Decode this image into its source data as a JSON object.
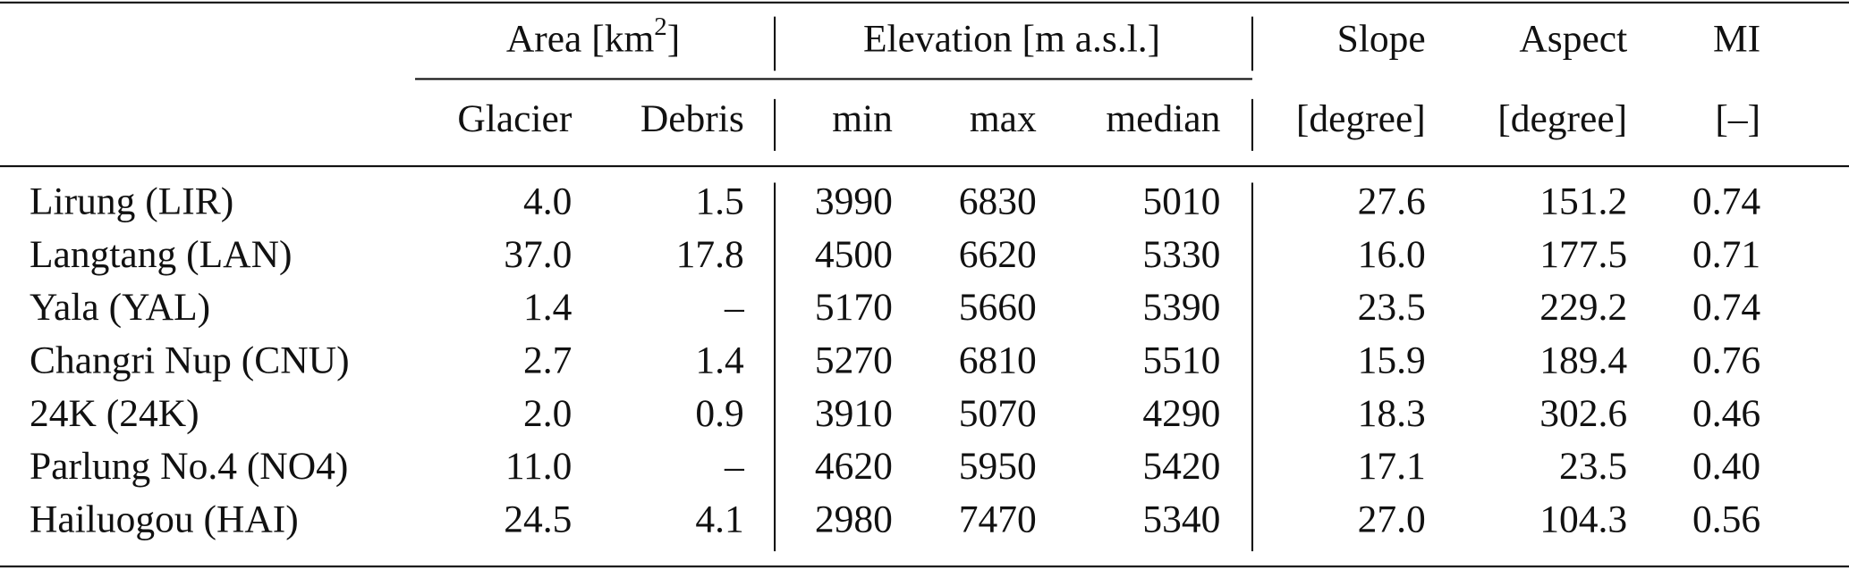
{
  "table": {
    "group_headers": [
      {
        "text": "Area [km",
        "sup": "2",
        "tail": "]"
      },
      {
        "text": "Elevation [m a.s.l.]"
      }
    ],
    "top_headers": [
      "Slope",
      "Aspect",
      "MI"
    ],
    "column_headers": [
      "Glacier",
      "Debris",
      "min",
      "max",
      "median",
      "[degree]",
      "[degree]",
      "[–]"
    ],
    "rows": [
      [
        "Lirung (LIR)",
        "4.0",
        "1.5",
        "3990",
        "6830",
        "5010",
        "27.6",
        "151.2",
        "0.74"
      ],
      [
        "Langtang (LAN)",
        "37.0",
        "17.8",
        "4500",
        "6620",
        "5330",
        "16.0",
        "177.5",
        "0.71"
      ],
      [
        "Yala (YAL)",
        "1.4",
        "–",
        "5170",
        "5660",
        "5390",
        "23.5",
        "229.2",
        "0.74"
      ],
      [
        "Changri Nup (CNU)",
        "2.7",
        "1.4",
        "5270",
        "6810",
        "5510",
        "15.9",
        "189.4",
        "0.76"
      ],
      [
        "24K (24K)",
        "2.0",
        "0.9",
        "3910",
        "5070",
        "4290",
        "18.3",
        "302.6",
        "0.46"
      ],
      [
        "Parlung No.4 (NO4)",
        "11.0",
        "–",
        "4620",
        "5950",
        "5420",
        "17.1",
        "23.5",
        "0.40"
      ],
      [
        "Hailuogou (HAI)",
        "24.5",
        "4.1",
        "2980",
        "7470",
        "5340",
        "27.0",
        "104.3",
        "0.56"
      ]
    ]
  }
}
